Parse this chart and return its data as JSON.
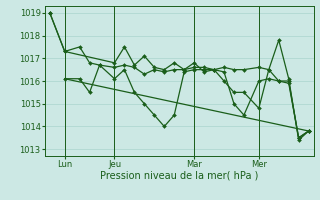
{
  "bg_color": "#cce8e4",
  "grid_color": "#aad4ce",
  "line_color": "#1a5e1a",
  "marker": "D",
  "marker_size": 2.0,
  "xlabel": "Pression niveau de la mer( hPa )",
  "ylim": [
    1012.7,
    1019.3
  ],
  "yticks": [
    1013,
    1014,
    1015,
    1016,
    1017,
    1018,
    1019
  ],
  "x_tick_labels": [
    "Lun",
    "Jeu",
    "Mar",
    "Mer"
  ],
  "x_tick_positions": [
    3,
    13,
    29,
    42
  ],
  "x_vlines": [
    3,
    13,
    29,
    42
  ],
  "xlim": [
    -1,
    53
  ],
  "line1_x": [
    0,
    3,
    13,
    15,
    17,
    19,
    21,
    23,
    25,
    27,
    29,
    31,
    33,
    35,
    37,
    39,
    42,
    44,
    46,
    48,
    50,
    52
  ],
  "line1_y": [
    1019.0,
    1017.3,
    1016.8,
    1017.5,
    1016.7,
    1017.1,
    1016.6,
    1016.5,
    1016.8,
    1016.5,
    1016.8,
    1016.4,
    1016.5,
    1016.0,
    1015.5,
    1015.5,
    1014.8,
    1016.5,
    1017.8,
    1016.1,
    1013.4,
    1013.8
  ],
  "line2_x": [
    0,
    3,
    6,
    8,
    10,
    13,
    15,
    17,
    19,
    21,
    23,
    25,
    27,
    29,
    31,
    33,
    35,
    37,
    39,
    42,
    44,
    46,
    48,
    50,
    52
  ],
  "line2_y": [
    1019.0,
    1017.3,
    1017.5,
    1016.8,
    1016.7,
    1016.1,
    1016.5,
    1015.5,
    1015.0,
    1014.5,
    1014.0,
    1014.5,
    1016.4,
    1016.5,
    1016.5,
    1016.5,
    1016.6,
    1016.5,
    1016.5,
    1016.6,
    1016.5,
    1016.0,
    1015.9,
    1013.5,
    1013.8
  ],
  "line3_x": [
    3,
    52
  ],
  "line3_y": [
    1016.1,
    1013.8
  ],
  "line4_x": [
    3,
    6,
    8,
    10,
    13,
    15,
    17,
    19,
    21,
    23,
    25,
    27,
    29,
    31,
    33,
    35,
    37,
    39,
    42,
    44,
    46,
    48,
    50,
    52
  ],
  "line4_y": [
    1016.1,
    1016.1,
    1015.5,
    1016.7,
    1016.6,
    1016.7,
    1016.6,
    1016.3,
    1016.5,
    1016.4,
    1016.5,
    1016.5,
    1016.6,
    1016.6,
    1016.5,
    1016.4,
    1015.0,
    1014.5,
    1016.0,
    1016.1,
    1016.0,
    1016.0,
    1013.5,
    1013.8
  ]
}
